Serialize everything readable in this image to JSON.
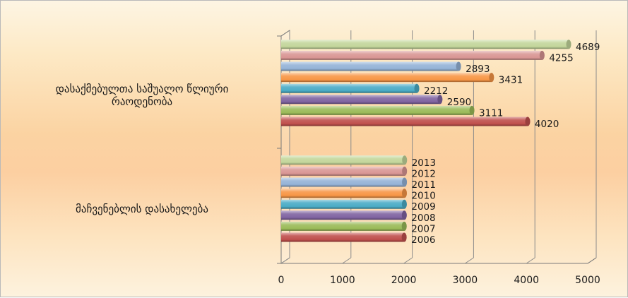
{
  "chart_data": {
    "type": "bar",
    "orientation": "horizontal",
    "style": "3d-cylinder",
    "categories": [
      "დასაქმებულთა საშუალო წლიური რაოდენობა",
      "მაჩვენებლის დასახელება"
    ],
    "category_label_lines": [
      [
        "დასაქმებულთა საშუალო წლიური",
        "რაოდენობა"
      ],
      [
        "მაჩვენებლის დასახელება"
      ]
    ],
    "series": [
      {
        "name": "2006",
        "color": "#c0504d",
        "values": [
          4020,
          2006
        ]
      },
      {
        "name": "2007",
        "color": "#9bbb59",
        "values": [
          3111,
          2007
        ]
      },
      {
        "name": "2008",
        "color": "#8064a2",
        "values": [
          2590,
          2008
        ]
      },
      {
        "name": "2009",
        "color": "#4bacc6",
        "values": [
          2212,
          2009
        ]
      },
      {
        "name": "2010",
        "color": "#f79646",
        "values": [
          3431,
          2010
        ]
      },
      {
        "name": "2011",
        "color": "#95b3d7",
        "values": [
          2893,
          2011
        ]
      },
      {
        "name": "2012",
        "color": "#d99694",
        "values": [
          4255,
          2012
        ]
      },
      {
        "name": "2013",
        "color": "#c3d69b",
        "values": [
          4689,
          2013
        ]
      }
    ],
    "xlim": [
      0,
      5000
    ],
    "xticks": [
      0,
      1000,
      2000,
      3000,
      4000,
      5000
    ],
    "grid": true,
    "legend": "none"
  }
}
